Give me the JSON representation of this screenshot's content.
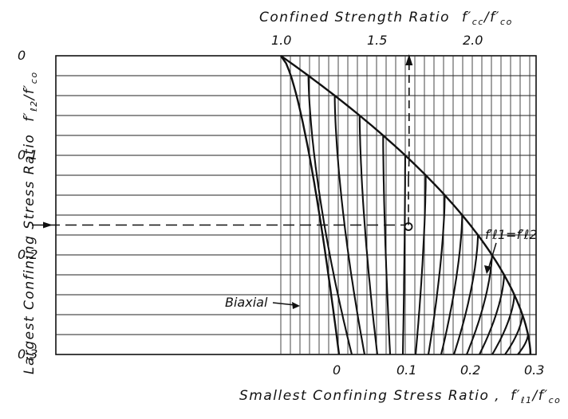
{
  "chart_data": {
    "type": "line",
    "title": "",
    "top_axis": {
      "label_main": "Confined Strength Ratio",
      "label_symbol": "f",
      "label_sub_num": "cc",
      "label_sub_den": "co",
      "ticks": [
        "1.0",
        "1.5",
        "2.0"
      ],
      "tick_values": [
        1.0,
        1.5,
        2.0
      ],
      "range": [
        1.0,
        2.3
      ]
    },
    "bottom_axis": {
      "label_main": "Smallest Confining Stress Ratio ,",
      "label_symbol": "f",
      "label_sub_num": "ℓ1",
      "label_sub_den": "co",
      "ticks": [
        "0",
        "0.1",
        "0.2",
        "0.3"
      ],
      "tick_values": [
        0,
        0.1,
        0.2,
        0.3
      ],
      "range": [
        0,
        0.3
      ]
    },
    "left_axis": {
      "label_main": "Largest Confining Stress Ratio",
      "label_symbol": "f",
      "label_sub_num": "ℓ2",
      "label_sub_den": "co",
      "ticks": [
        "0",
        "0.1",
        "0.2",
        "0.3"
      ],
      "tick_values": [
        0,
        0.1,
        0.2,
        0.3
      ],
      "range": [
        0,
        0.3
      ],
      "inverted": true
    },
    "annotations": {
      "biaxial": "Biaxial",
      "equal_line": "f′ℓ1=f′ℓ2"
    },
    "grid": {
      "horizontal_step": 0.02,
      "vertical_step": 0.1
    },
    "confinement_curves": [
      0,
      0.02,
      0.04,
      0.06,
      0.08,
      0.1,
      0.12,
      0.14,
      0.16,
      0.18,
      0.2,
      0.22,
      0.24,
      0.26,
      0.28,
      0.3
    ],
    "example": {
      "fl2": 0.17,
      "fl1": 0.07,
      "fcc_ratio": 1.67
    }
  }
}
